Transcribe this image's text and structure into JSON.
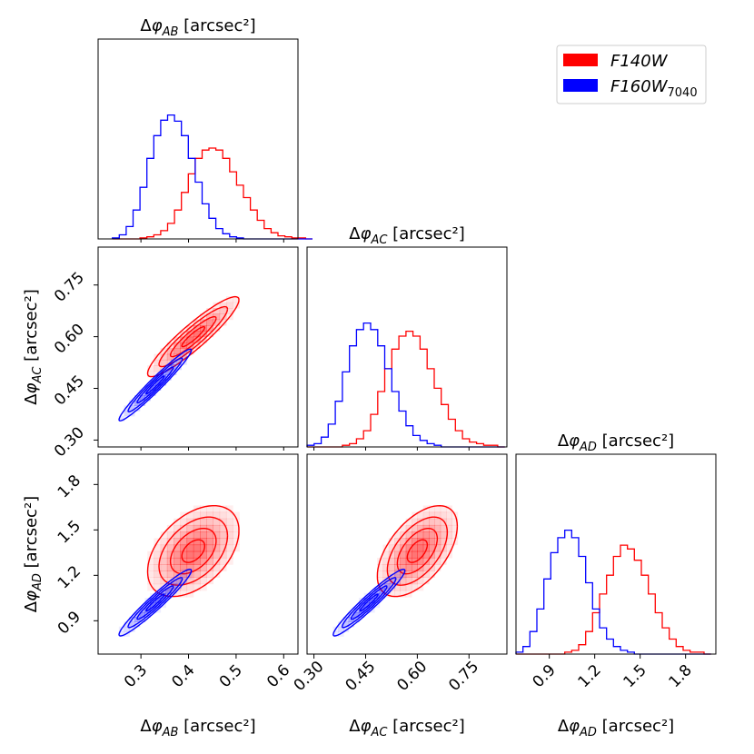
{
  "chart_data": {
    "type": "corner",
    "parameters": [
      {
        "key": "AB",
        "label": "Δφ_AB [arcsec²]",
        "ticks": [
          "0.3",
          "0.4",
          "0.5",
          "0.6"
        ],
        "tick_values": [
          0.3,
          0.4,
          0.5,
          0.6
        ],
        "range": [
          0.21,
          0.63
        ]
      },
      {
        "key": "AC",
        "label": "Δφ_AC [arcsec²]",
        "ticks": [
          "0.30",
          "0.45",
          "0.60",
          "0.75"
        ],
        "tick_values": [
          0.3,
          0.45,
          0.6,
          0.75
        ],
        "range": [
          0.28,
          0.86
        ]
      },
      {
        "key": "AD",
        "label": "Δφ_AD [arcsec²]",
        "ticks": [
          "0.9",
          "1.2",
          "1.5",
          "1.8"
        ],
        "tick_values": [
          0.9,
          1.2,
          1.5,
          1.8
        ],
        "range": [
          0.68,
          2.0
        ]
      }
    ],
    "legend": {
      "placement": "top-right",
      "entries": [
        {
          "name": "F140W",
          "color": "#ff0000"
        },
        {
          "name": "F160W_7040",
          "color": "#0000ff"
        }
      ]
    },
    "series": [
      {
        "name": "F140W",
        "color": "#ff0000",
        "mean": {
          "AB": 0.41,
          "AC": 0.6,
          "AD": 1.36
        },
        "sd": {
          "AB": 0.048,
          "AC": 0.058,
          "AD": 0.15
        },
        "corr": {
          "AB_AC": 0.92,
          "AB_AD": 0.45,
          "AC_AD": 0.55
        },
        "hist_AB": {
          "start": 0.24,
          "step": 0.0145,
          "counts": [
            0,
            0,
            0,
            0,
            1,
            2,
            4,
            8,
            15,
            28,
            45,
            63,
            78,
            86,
            88,
            86,
            78,
            65,
            52,
            40,
            28,
            18,
            10,
            6,
            3,
            2,
            1,
            1,
            0
          ]
        },
        "hist_AC": {
          "start": 0.28,
          "step": 0.0205,
          "counts": [
            0,
            0,
            0,
            0,
            0,
            1,
            2,
            5,
            10,
            20,
            34,
            48,
            60,
            68,
            71,
            68,
            60,
            48,
            36,
            26,
            17,
            10,
            5,
            3,
            2,
            1,
            1,
            0
          ]
        },
        "hist_AD": {
          "start": 0.68,
          "step": 0.046,
          "counts": [
            0,
            0,
            0,
            0,
            0,
            0,
            0,
            1,
            2,
            5,
            12,
            22,
            32,
            42,
            52,
            58,
            56,
            50,
            42,
            32,
            22,
            14,
            8,
            4,
            2,
            1,
            1,
            0
          ]
        }
      },
      {
        "name": "F160W_7040",
        "color": "#0000ff",
        "mean": {
          "AB": 0.33,
          "AC": 0.46,
          "AD": 1.02
        },
        "sd": {
          "AB": 0.038,
          "AC": 0.052,
          "AD": 0.11
        },
        "corr": {
          "AB_AC": 0.97,
          "AB_AD": 0.96,
          "AC_AD": 0.96
        },
        "hist_AB": {
          "start": 0.24,
          "step": 0.0145,
          "counts": [
            1,
            4,
            12,
            28,
            50,
            78,
            100,
            115,
            120,
            114,
            100,
            78,
            55,
            34,
            20,
            10,
            5,
            2,
            1,
            0,
            0,
            0,
            0,
            0,
            0,
            0,
            0,
            0,
            0
          ]
        },
        "hist_AC": {
          "start": 0.28,
          "step": 0.0205,
          "counts": [
            1,
            2,
            6,
            14,
            28,
            46,
            62,
            72,
            76,
            72,
            62,
            48,
            34,
            22,
            13,
            7,
            4,
            2,
            1,
            0,
            0,
            0,
            0,
            0,
            0,
            0,
            0,
            0
          ]
        },
        "hist_AD": {
          "start": 0.68,
          "step": 0.046,
          "counts": [
            1,
            4,
            12,
            24,
            40,
            54,
            62,
            66,
            62,
            52,
            38,
            24,
            14,
            8,
            4,
            2,
            1,
            0,
            0,
            0,
            0,
            0,
            0,
            0,
            0,
            0,
            0,
            0
          ]
        }
      }
    ]
  }
}
